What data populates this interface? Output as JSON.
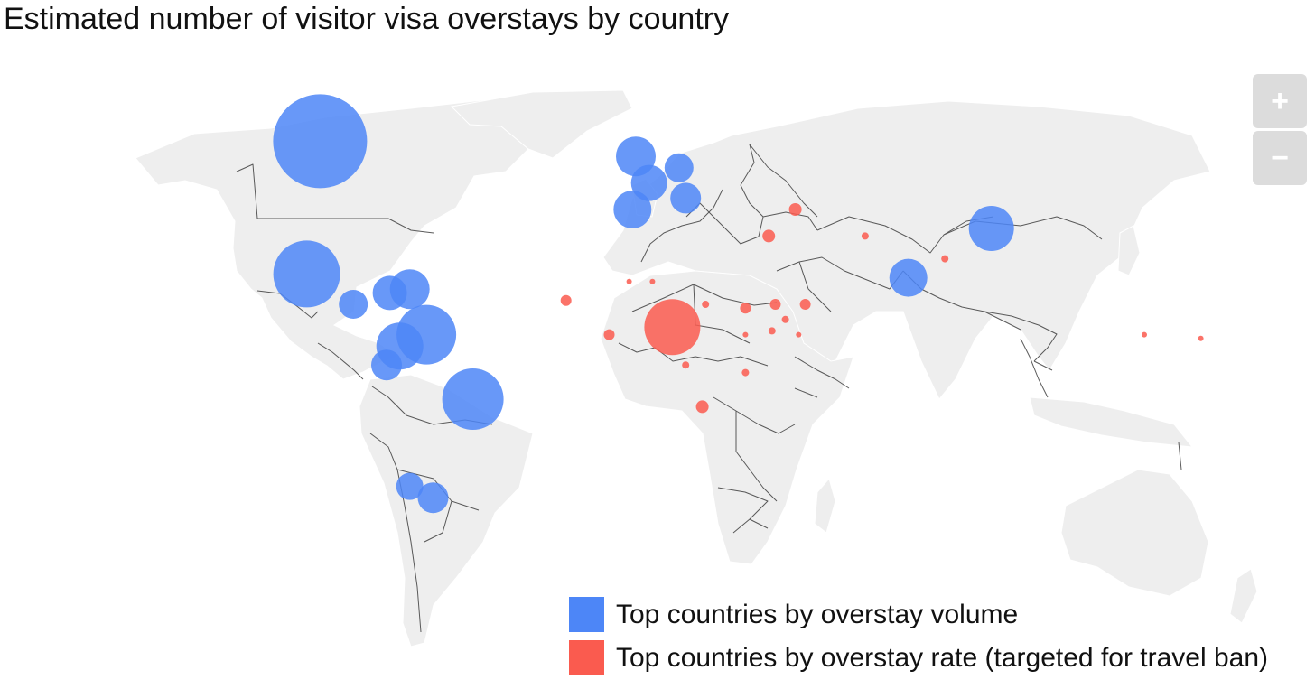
{
  "title": "Estimated number of visitor visa overstays by country",
  "zoom": {
    "in_label": "+",
    "out_label": "−"
  },
  "colors": {
    "volume": "#4d86f7",
    "rate": "#fa5b4f",
    "land": "#eeeeee",
    "border": "#333333"
  },
  "legend": {
    "volume_label": "Top countries by overstay volume",
    "rate_label": "Top countries by overstay rate (targeted for travel ban)"
  },
  "markers": {
    "volume": [
      {
        "lon": -98,
        "lat": 58,
        "size": 52
      },
      {
        "lon": -102,
        "lat": 23,
        "size": 37
      },
      {
        "lon": -88,
        "lat": 15,
        "size": 16
      },
      {
        "lon": -77,
        "lat": 18,
        "size": 19
      },
      {
        "lon": -71,
        "lat": 19,
        "size": 22
      },
      {
        "lon": -66,
        "lat": 7,
        "size": 33
      },
      {
        "lon": -74,
        "lat": 4,
        "size": 26
      },
      {
        "lon": -78,
        "lat": -1,
        "size": 17
      },
      {
        "lon": -52,
        "lat": -10,
        "size": 34
      },
      {
        "lon": -71,
        "lat": -33,
        "size": 15
      },
      {
        "lon": -64,
        "lat": -36,
        "size": 17
      },
      {
        "lon": -3,
        "lat": 54,
        "size": 22
      },
      {
        "lon": 1,
        "lat": 47,
        "size": 20
      },
      {
        "lon": 10,
        "lat": 51,
        "size": 16
      },
      {
        "lon": 12,
        "lat": 43,
        "size": 17
      },
      {
        "lon": -4,
        "lat": 40,
        "size": 21
      },
      {
        "lon": 79,
        "lat": 22,
        "size": 21
      },
      {
        "lon": 104,
        "lat": 35,
        "size": 25
      }
    ],
    "rate": [
      {
        "lon": 8,
        "lat": 9,
        "size": 31
      },
      {
        "lon": -24,
        "lat": 16,
        "size": 6
      },
      {
        "lon": -11,
        "lat": 7,
        "size": 6
      },
      {
        "lon": -5,
        "lat": 21,
        "size": 3
      },
      {
        "lon": 2,
        "lat": 21,
        "size": 3
      },
      {
        "lon": 18,
        "lat": 15,
        "size": 4
      },
      {
        "lon": 30,
        "lat": 14,
        "size": 6
      },
      {
        "lon": 30,
        "lat": 7,
        "size": 3
      },
      {
        "lon": 39,
        "lat": 15,
        "size": 6
      },
      {
        "lon": 48,
        "lat": 15,
        "size": 6
      },
      {
        "lon": 42,
        "lat": 11,
        "size": 4
      },
      {
        "lon": 46,
        "lat": 7,
        "size": 3
      },
      {
        "lon": 38,
        "lat": 8,
        "size": 4
      },
      {
        "lon": 12,
        "lat": -1,
        "size": 4
      },
      {
        "lon": 17,
        "lat": -12,
        "size": 7
      },
      {
        "lon": 30,
        "lat": -3,
        "size": 4
      },
      {
        "lon": 45,
        "lat": 40,
        "size": 7
      },
      {
        "lon": 37,
        "lat": 33,
        "size": 7
      },
      {
        "lon": 66,
        "lat": 33,
        "size": 4
      },
      {
        "lon": 90,
        "lat": 27,
        "size": 4
      },
      {
        "lon": 150,
        "lat": 7,
        "size": 3
      },
      {
        "lon": 167,
        "lat": 6,
        "size": 3
      }
    ]
  }
}
